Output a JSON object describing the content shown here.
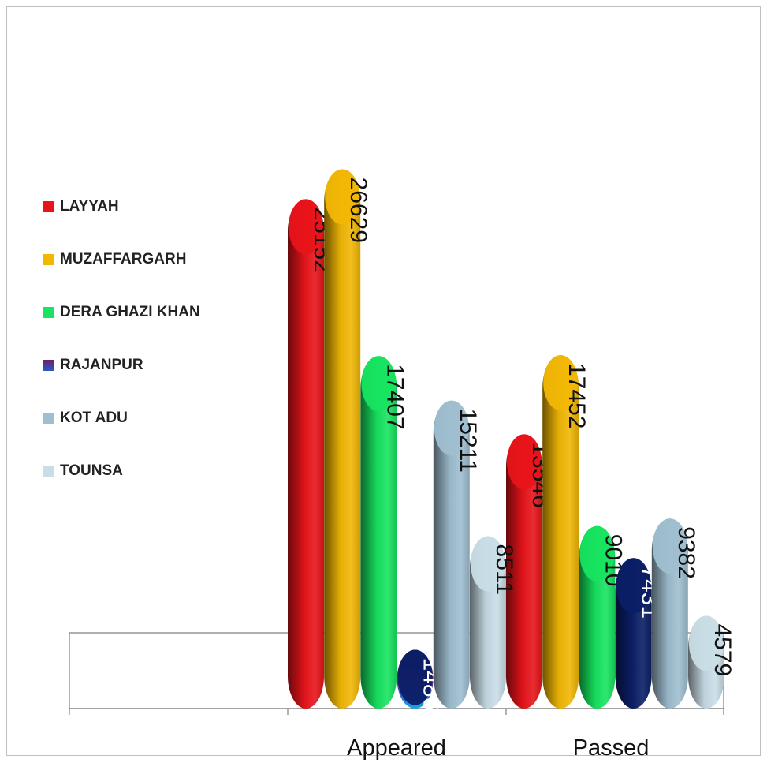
{
  "chart_data": {
    "type": "bar",
    "categories": [
      "Appeared",
      "Passed"
    ],
    "series": [
      {
        "name": "LAYYAH",
        "values": [
          25152,
          13546
        ],
        "color": "#e8141a"
      },
      {
        "name": "MUZAFFARGARH",
        "values": [
          26629,
          17452
        ],
        "color": "#f2b705"
      },
      {
        "name": "DERA GHAZI KHAN",
        "values": [
          17407,
          9010
        ],
        "color": "#17e460"
      },
      {
        "name": "RAJANPUR",
        "values": [
          1486,
          7431
        ],
        "color": "#0b1f66"
      },
      {
        "name": "KOT ADU",
        "values": [
          15211,
          9382
        ],
        "color": "#9fbfd0"
      },
      {
        "name": "TOUNSA",
        "values": [
          8511,
          4579
        ],
        "color": "#c9dde6"
      }
    ],
    "data_labels": [
      [
        "25152",
        "13546"
      ],
      [
        "26629",
        "17452"
      ],
      [
        "17407",
        "9010"
      ],
      [
        "1486",
        "7431"
      ],
      [
        "15211",
        "9382"
      ],
      [
        "8511",
        "4579"
      ]
    ],
    "label_colors": [
      "#111111",
      "#111111",
      "#111111",
      "#ffffff",
      "#111111",
      "#111111"
    ],
    "ylim": [
      0,
      30000
    ],
    "grid": false,
    "legend_position": "left"
  }
}
